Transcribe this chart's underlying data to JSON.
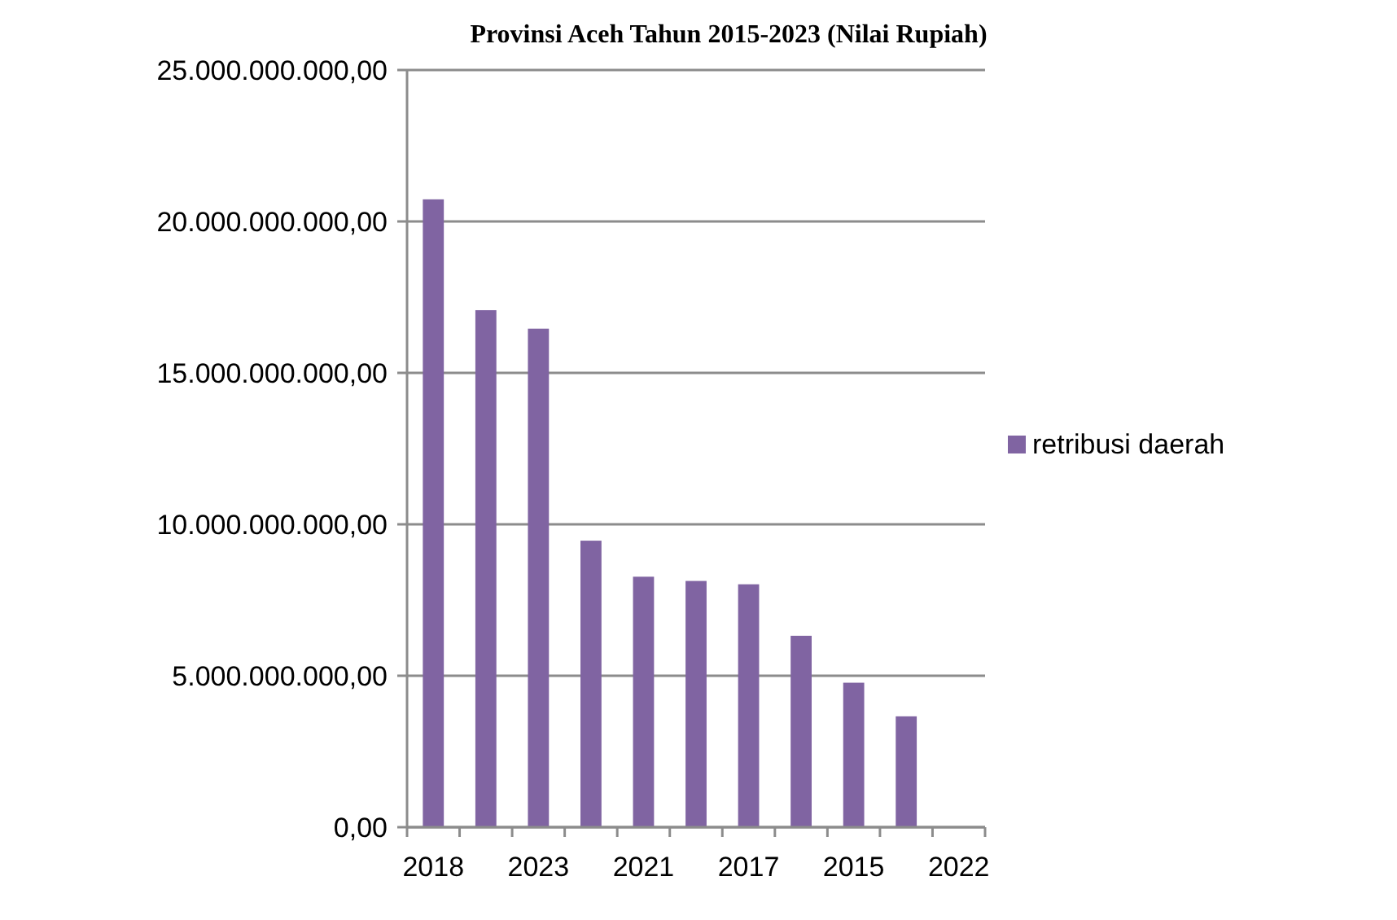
{
  "chart_data": {
    "type": "bar",
    "title": "Provinsi Aceh Tahun 2015-2023 (Nilai Rupiah)",
    "categories": [
      "2018",
      null,
      "2023",
      null,
      "2021",
      null,
      "2017",
      null,
      "2015",
      null,
      "2022"
    ],
    "series": [
      {
        "name": "retribusi daerah",
        "color": "#8064a2",
        "values": [
          20730000000,
          17070000000,
          16460000000,
          9460000000,
          8270000000,
          8130000000,
          8020000000,
          6320000000,
          4770000000,
          3660000000,
          null
        ]
      }
    ],
    "ylim": [
      0,
      25000000000
    ],
    "yticks": [
      {
        "value": 0,
        "label": "0,00"
      },
      {
        "value": 5000000000,
        "label": "5.000.000.000,00"
      },
      {
        "value": 10000000000,
        "label": "10.000.000.000,00"
      },
      {
        "value": 15000000000,
        "label": "15.000.000.000,00"
      },
      {
        "value": 20000000000,
        "label": "20.000.000.000,00"
      },
      {
        "value": 25000000000,
        "label": "25.000.000.000,00"
      }
    ],
    "grid": "y",
    "legend": "right"
  }
}
